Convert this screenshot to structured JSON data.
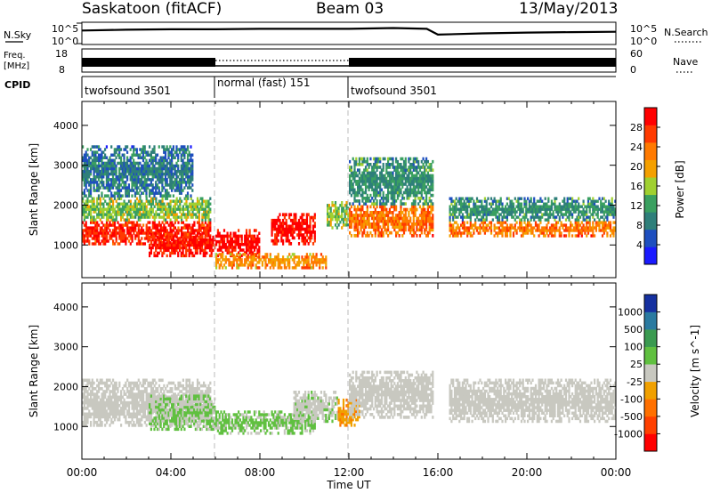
{
  "header": {
    "station": "Saskatoon (fitACF)",
    "beam": "Beam 03",
    "date": "13/May/2013"
  },
  "noise_panel": {
    "left_label": "N.Sky",
    "left_ticks": [
      "10^5",
      "10^0"
    ],
    "right_ticks": [
      "10^5",
      "10^0"
    ],
    "right_label": "N.Search"
  },
  "freq_panel": {
    "left_label_line1": "Freq.",
    "left_label_line2": "[MHz]",
    "left_ticks": [
      "18",
      "8"
    ],
    "right_ticks": [
      "60",
      "0"
    ],
    "right_label": "Nave"
  },
  "cpid_panel": {
    "label": "CPID",
    "segments": [
      {
        "label": "twofsound 3501",
        "start_h": 0,
        "end_h": 6
      },
      {
        "label": "normal (fast) 151",
        "start_h": 6,
        "end_h": 12
      },
      {
        "label": "twofsound 3501",
        "start_h": 12,
        "end_h": 24
      }
    ]
  },
  "axes": {
    "xlabel": "Time UT",
    "ylabel": "Slant Range [km]",
    "x_ticks": [
      "00:00",
      "04:00",
      "08:00",
      "12:00",
      "16:00",
      "20:00",
      "00:00"
    ],
    "y_ticks": [
      "1000",
      "2000",
      "3000",
      "4000"
    ]
  },
  "power_colorbar": {
    "label": "Power [dB]",
    "ticks": [
      "4",
      "8",
      "12",
      "16",
      "20",
      "24",
      "28"
    ],
    "colors": [
      "#1a1aff",
      "#1e4fbf",
      "#2e7f7a",
      "#3aa060",
      "#a0d030",
      "#f4a000",
      "#ff7a00",
      "#ff3a00",
      "#ff0000"
    ]
  },
  "velocity_colorbar": {
    "label": "Velocity [m s^-1]",
    "ticks": [
      "1000",
      "500",
      "100",
      "25",
      "-25",
      "-100",
      "-500",
      "-1000"
    ],
    "colors": [
      "#1530a0",
      "#2a7aa0",
      "#3a9a50",
      "#60c040",
      "#c8c8c0",
      "#f0a000",
      "#ff7000",
      "#ff4000",
      "#ff0000"
    ]
  },
  "chart_data": [
    {
      "type": "line",
      "title": "N.Sky",
      "x_range": [
        0,
        24
      ],
      "series": [
        {
          "x": [
            0,
            2,
            4,
            6,
            8,
            10,
            12,
            14,
            15.5,
            16,
            18,
            20,
            22,
            24
          ],
          "y": [
            3.2,
            3.4,
            3.5,
            3.5,
            3.6,
            3.6,
            3.6,
            3.8,
            3.6,
            2.2,
            2.5,
            2.7,
            2.8,
            2.9
          ]
        }
      ]
    },
    {
      "type": "line",
      "title": "Freq. [MHz]",
      "x_range": [
        0,
        24
      ],
      "ylim": [
        8,
        18
      ],
      "series": [
        {
          "x": [
            0,
            6,
            6,
            12,
            12,
            24
          ],
          "y": [
            10,
            10,
            12,
            12,
            10,
            10
          ]
        }
      ]
    },
    {
      "type": "heatmap",
      "title": "Power [dB]",
      "xlabel": "Time UT",
      "ylabel": "Slant Range [km]",
      "x_range_h": [
        0,
        24
      ],
      "ylim": [
        180,
        4600
      ],
      "clim": [
        0,
        30
      ],
      "bands": [
        {
          "t0": 0,
          "t1": 5.8,
          "r0": 1000,
          "r1": 1600,
          "power": 27
        },
        {
          "t0": 0,
          "t1": 5.8,
          "r0": 1600,
          "r1": 2200,
          "power": 14
        },
        {
          "t0": 0,
          "t1": 5,
          "r0": 2200,
          "r1": 3500,
          "power": 8
        },
        {
          "t0": 3,
          "t1": 6,
          "r0": 700,
          "r1": 1300,
          "power": 28
        },
        {
          "t0": 6,
          "t1": 8,
          "r0": 700,
          "r1": 1400,
          "power": 29
        },
        {
          "t0": 8.5,
          "t1": 10.5,
          "r0": 1000,
          "r1": 1800,
          "power": 29
        },
        {
          "t0": 6,
          "t1": 11,
          "r0": 400,
          "r1": 800,
          "power": 20
        },
        {
          "t0": 11,
          "t1": 12,
          "r0": 1400,
          "r1": 2100,
          "power": 14
        },
        {
          "t0": 12,
          "t1": 15.8,
          "r0": 1200,
          "r1": 2000,
          "power": 22
        },
        {
          "t0": 12,
          "t1": 15.8,
          "r0": 2000,
          "r1": 3200,
          "power": 10
        },
        {
          "t0": 16.5,
          "t1": 24,
          "r0": 1200,
          "r1": 1600,
          "power": 22
        },
        {
          "t0": 16.5,
          "t1": 24,
          "r0": 1600,
          "r1": 2200,
          "power": 10
        }
      ]
    },
    {
      "type": "heatmap",
      "title": "Velocity [m s^-1]",
      "xlabel": "Time UT",
      "ylabel": "Slant Range [km]",
      "x_range_h": [
        0,
        24
      ],
      "ylim": [
        180,
        4600
      ],
      "clim": [
        -1000,
        1000
      ],
      "bands": [
        {
          "t0": 0,
          "t1": 5.8,
          "r0": 1000,
          "r1": 2200,
          "velocity": 0
        },
        {
          "t0": 3,
          "t1": 6,
          "r0": 900,
          "r1": 1800,
          "velocity": 120
        },
        {
          "t0": 6,
          "t1": 10.5,
          "r0": 800,
          "r1": 1400,
          "velocity": 150
        },
        {
          "t0": 9.5,
          "t1": 11.5,
          "r0": 1100,
          "r1": 1900,
          "velocity": 60
        },
        {
          "t0": 11.5,
          "t1": 12.5,
          "r0": 1000,
          "r1": 1700,
          "velocity": -300
        },
        {
          "t0": 12,
          "t1": 15.8,
          "r0": 1200,
          "r1": 2400,
          "velocity": 0
        },
        {
          "t0": 16.5,
          "t1": 24,
          "r0": 1100,
          "r1": 2200,
          "velocity": 0
        }
      ]
    }
  ]
}
